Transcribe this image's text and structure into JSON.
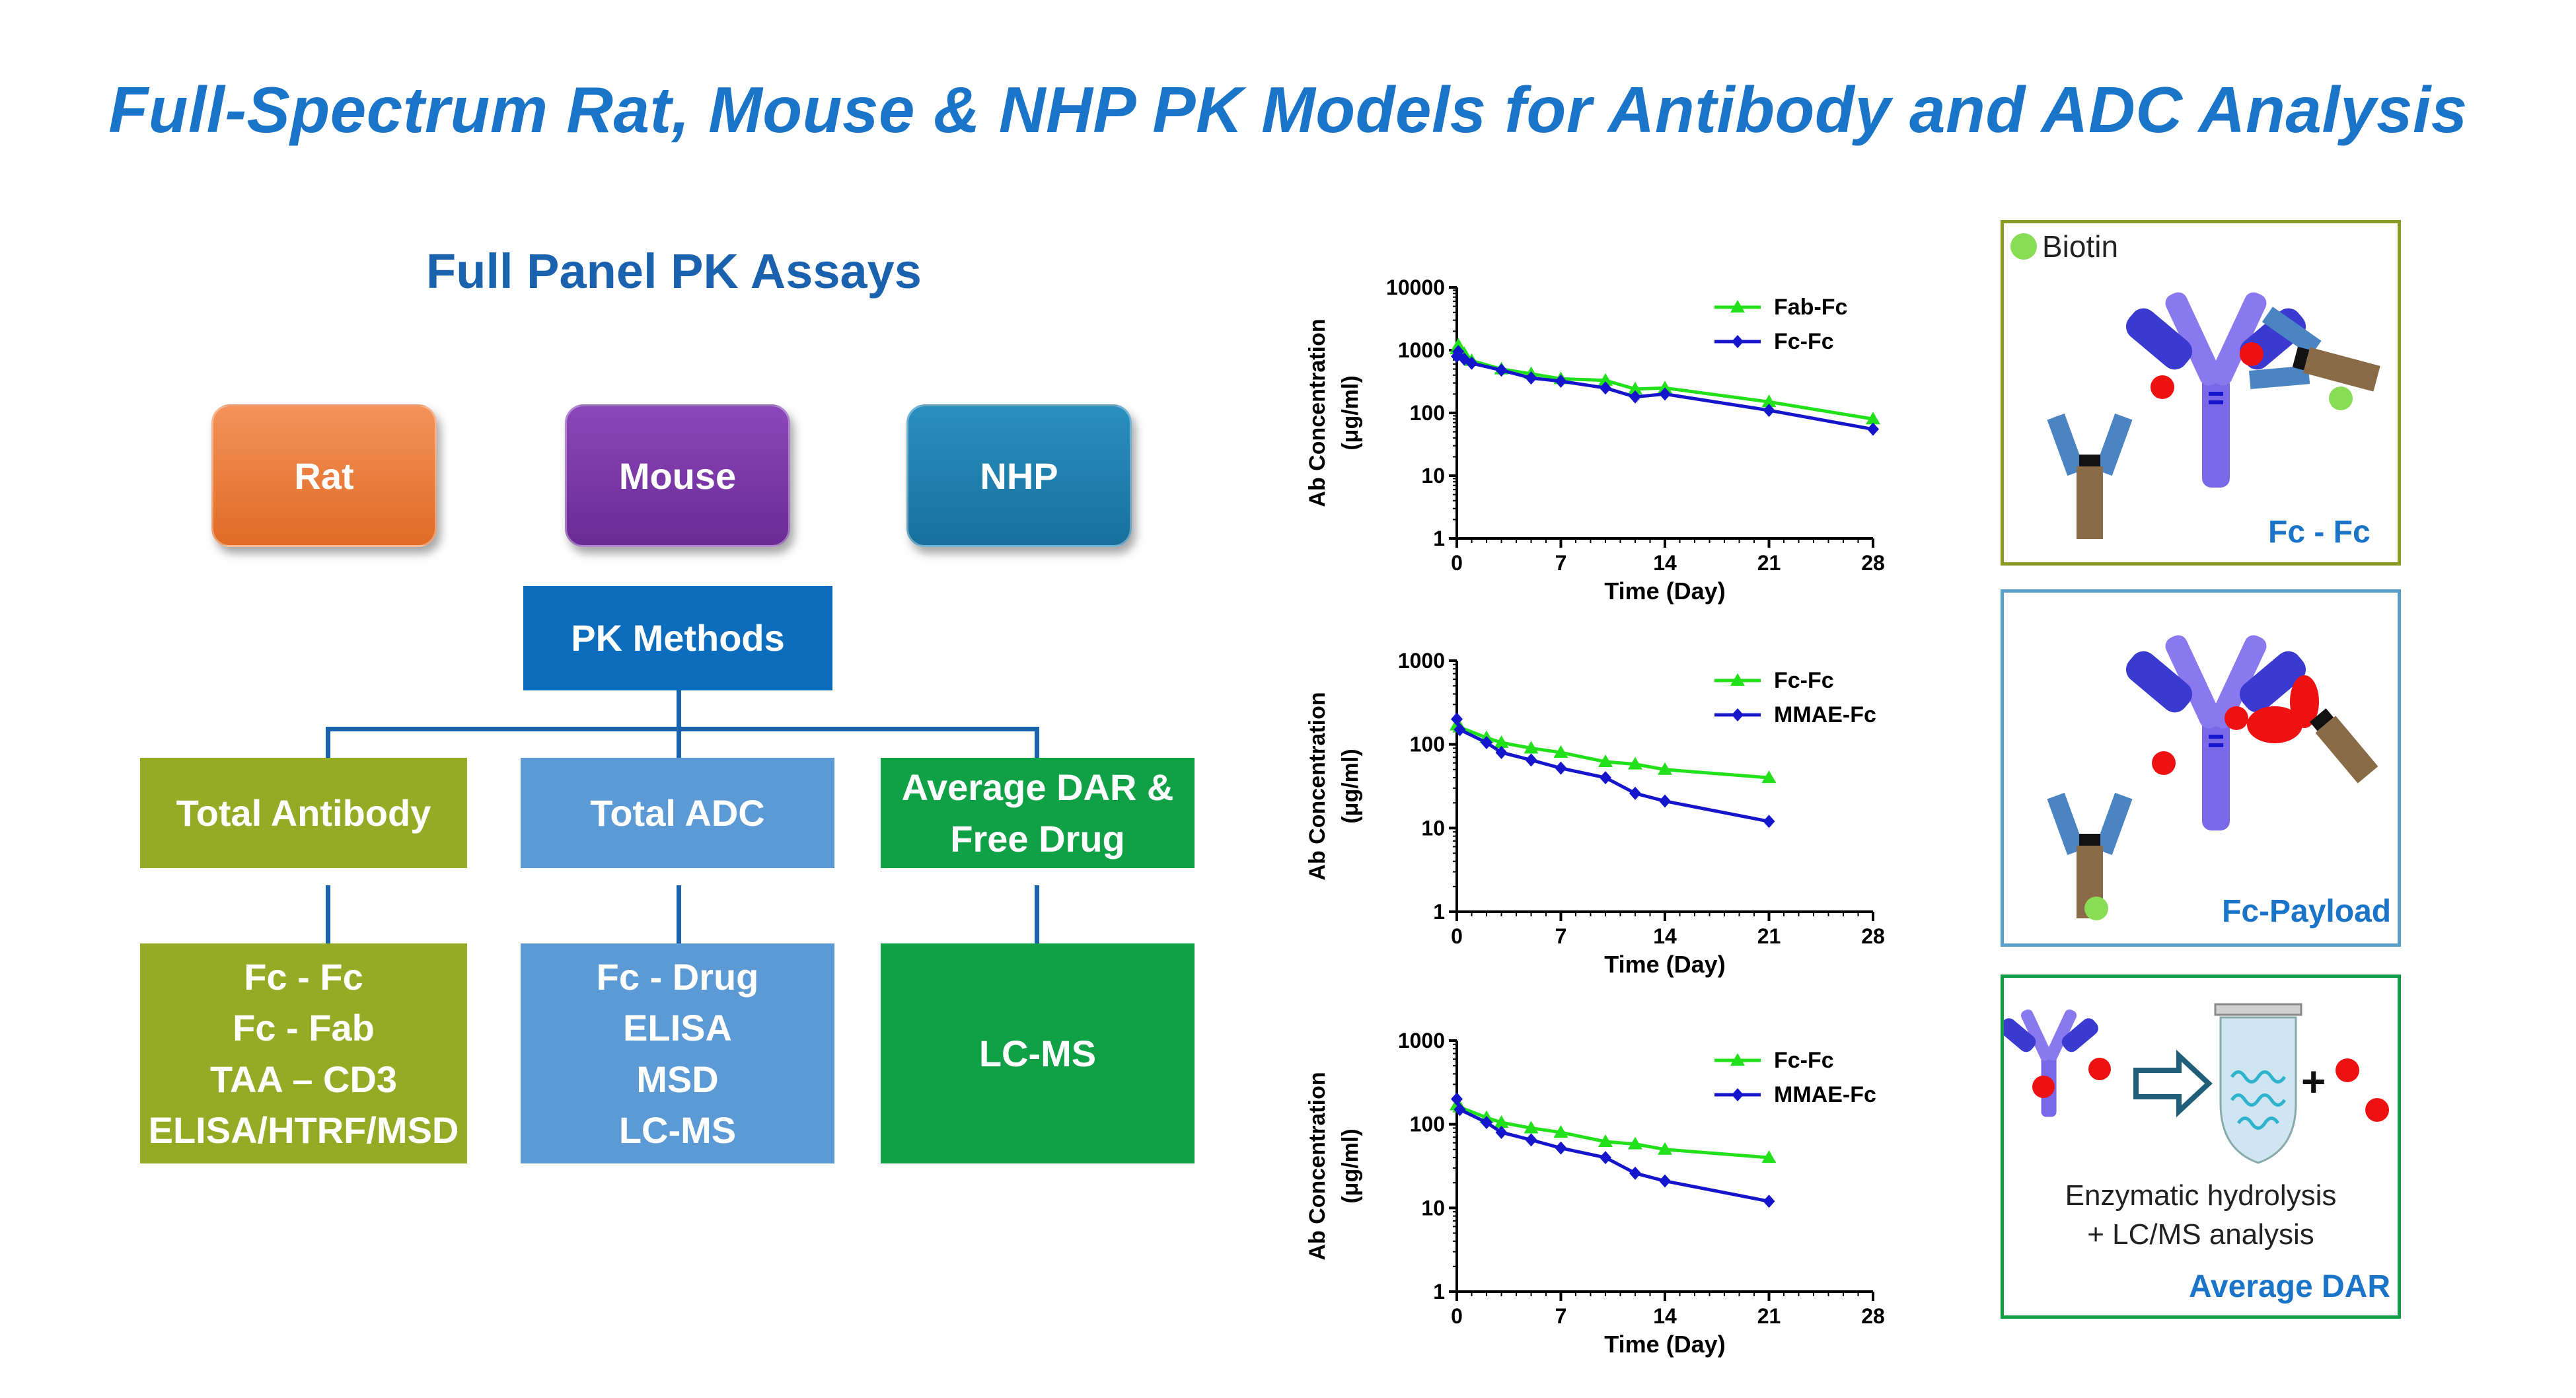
{
  "title": "Full-Spectrum Rat, Mouse & NHP PK Models for Antibody and ADC Analysis",
  "panel_title": "Full Panel PK Assays",
  "species": [
    "Rat",
    "Mouse",
    "NHP"
  ],
  "pk_methods": "PK Methods",
  "categories": [
    {
      "label_line1": "Total Antibody",
      "label_line2": "",
      "methods": [
        "Fc - Fc",
        "Fc - Fab",
        "TAA – CD3",
        "ELISA/HTRF/MSD"
      ]
    },
    {
      "label_line1": "Total ADC",
      "label_line2": "",
      "methods": [
        "Fc - Drug",
        "ELISA",
        "MSD",
        "LC-MS"
      ]
    },
    {
      "label_line1": "Average DAR &",
      "label_line2": "Free Drug",
      "methods": [
        "LC-MS"
      ]
    }
  ],
  "colors": {
    "title_blue": "#1a74c7",
    "rat": "#e97a3c",
    "mouse": "#7a38a8",
    "nhp": "#1f80ae",
    "pk_methods": "#0d6dbd",
    "total_antibody": "#96ab25",
    "total_adc": "#5c9ad6",
    "dar": "#10a046",
    "series_green": "#22e01a",
    "series_blue": "#1515cc",
    "antibody_purple": "#7b68e8",
    "payload_red": "#ee1111",
    "biotin_green": "#88dd55"
  },
  "chart_data": [
    {
      "type": "line",
      "xlabel": "Time (Day)",
      "ylabel_line1": "Ab Concentration",
      "ylabel_line2": "(μg/ml)",
      "y_scale": "log",
      "ylim": [
        1,
        10000
      ],
      "xlim": [
        0,
        28
      ],
      "x_ticks": [
        "0",
        "7",
        "14",
        "21",
        "28"
      ],
      "y_ticks": [
        "1",
        "10",
        "100",
        "1000",
        "10000"
      ],
      "legend_position": "top-right",
      "series": [
        {
          "name": "Fab-Fc",
          "marker": "triangle",
          "x": [
            0,
            0.1,
            0.5,
            1,
            3,
            5,
            7,
            10,
            12,
            14,
            21,
            28
          ],
          "y": [
            1050,
            1200,
            880,
            680,
            500,
            420,
            350,
            330,
            240,
            250,
            150,
            80
          ]
        },
        {
          "name": "Fc-Fc",
          "marker": "diamond",
          "x": [
            0,
            0.1,
            0.5,
            1,
            3,
            5,
            7,
            10,
            12,
            14,
            21,
            28
          ],
          "y": [
            800,
            950,
            720,
            620,
            480,
            360,
            320,
            250,
            180,
            200,
            110,
            55
          ]
        }
      ]
    },
    {
      "type": "line",
      "xlabel": "Time (Day)",
      "ylabel_line1": "Ab Concentration",
      "ylabel_line2": "(μg/ml)",
      "y_scale": "log",
      "ylim": [
        1,
        1000
      ],
      "xlim": [
        0,
        28
      ],
      "x_ticks": [
        "0",
        "7",
        "14",
        "21",
        "28"
      ],
      "y_ticks": [
        "1",
        "10",
        "100",
        "1000"
      ],
      "legend_position": "top-right",
      "series": [
        {
          "name": "Fc-Fc",
          "marker": "triangle",
          "x": [
            0,
            0.2,
            2,
            3,
            5,
            7,
            10,
            12,
            14,
            21
          ],
          "y": [
            170,
            160,
            120,
            105,
            90,
            80,
            62,
            58,
            50,
            40
          ]
        },
        {
          "name": "MMAE-Fc",
          "marker": "diamond",
          "x": [
            0,
            0.2,
            2,
            3,
            5,
            7,
            10,
            12,
            14,
            21
          ],
          "y": [
            200,
            150,
            105,
            80,
            65,
            52,
            40,
            26,
            21,
            12
          ]
        }
      ]
    },
    {
      "type": "line",
      "xlabel": "Time (Day)",
      "ylabel_line1": "Ab Concentration",
      "ylabel_line2": "(μg/ml)",
      "y_scale": "log",
      "ylim": [
        1,
        1000
      ],
      "xlim": [
        0,
        28
      ],
      "x_ticks": [
        "0",
        "7",
        "14",
        "21",
        "28"
      ],
      "y_ticks": [
        "1",
        "10",
        "100",
        "1000"
      ],
      "legend_position": "top-right",
      "series": [
        {
          "name": "Fc-Fc",
          "marker": "triangle",
          "x": [
            0,
            0.2,
            2,
            3,
            5,
            7,
            10,
            12,
            14,
            21
          ],
          "y": [
            170,
            160,
            120,
            105,
            90,
            80,
            62,
            58,
            50,
            40
          ]
        },
        {
          "name": "MMAE-Fc",
          "marker": "diamond",
          "x": [
            0,
            0.2,
            2,
            3,
            5,
            7,
            10,
            12,
            14,
            21
          ],
          "y": [
            200,
            150,
            105,
            80,
            65,
            52,
            40,
            26,
            21,
            12
          ]
        }
      ]
    }
  ],
  "assay_panels": {
    "fc_fc": {
      "legend": "Biotin",
      "label": "Fc - Fc",
      "border": "#8a9a25"
    },
    "fc_payload": {
      "label": "Fc-Payload",
      "border": "#5aa0cc"
    },
    "average_dar": {
      "text_line1": "Enzymatic hydrolysis",
      "text_line2": "+ LC/MS analysis",
      "plus": "+",
      "label": "Average DAR",
      "border": "#119c45"
    }
  }
}
